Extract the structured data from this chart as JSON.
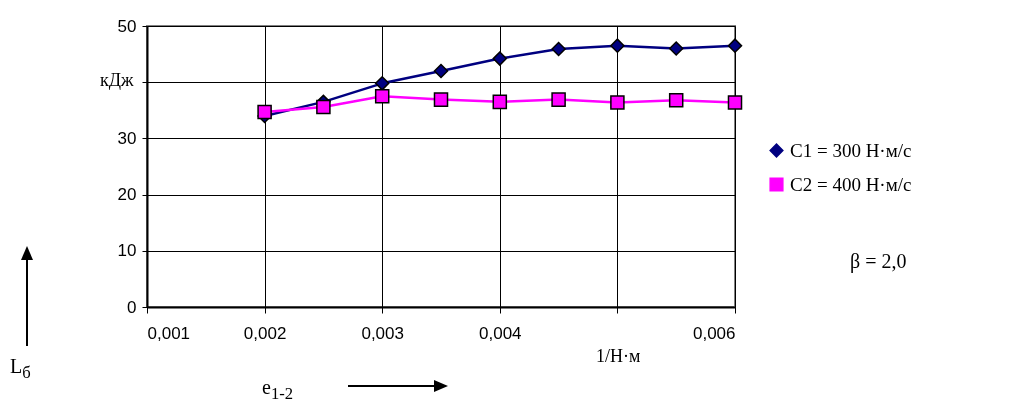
{
  "chart_data": {
    "type": "line",
    "xlabel": "e$_{1-2}$",
    "ylabel": "L$_{б}$",
    "x": [
      0.002,
      0.0025,
      0.003,
      0.0035,
      0.004,
      0.0045,
      0.005,
      0.0055,
      0.006
    ],
    "series": [
      {
        "name": "C1 = 300 Н·м/с",
        "color": "#000080",
        "marker": "diamond",
        "values": [
          34,
          36.5,
          39.8,
          42,
          44.2,
          45.9,
          46.5,
          46,
          46.5
        ]
      },
      {
        "name": "C2 = 400 Н·м/с",
        "color": "#ff00ff",
        "marker": "square",
        "values": [
          34.7,
          35.6,
          37.5,
          36.9,
          36.5,
          36.9,
          36.4,
          36.8,
          36.4
        ]
      }
    ],
    "xlim": [
      0.001,
      0.006
    ],
    "xticks": [
      {
        "value": 0.001,
        "label": "0,001"
      },
      {
        "value": 0.002,
        "label": "0,002"
      },
      {
        "value": 0.003,
        "label": "0,003"
      },
      {
        "value": 0.004,
        "label": "0,004"
      },
      {
        "value": 0.005,
        "label": null
      },
      {
        "value": 0.006,
        "label": "0,006"
      }
    ],
    "ylim": [
      0,
      50
    ],
    "yticks": [
      0,
      10,
      20,
      30,
      {
        "value": 40,
        "label": null
      },
      50
    ],
    "grid": true,
    "legend": "right",
    "annotations": [
      "кДж",
      "1/Н·м",
      "β = 2,0"
    ]
  }
}
